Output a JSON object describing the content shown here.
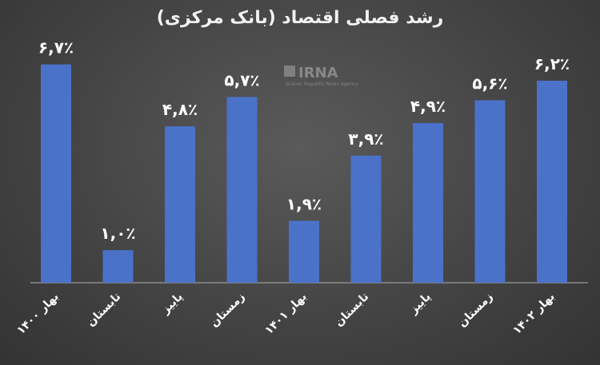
{
  "chart_data": {
    "type": "bar",
    "title": "رشد فصلی اقتصاد (بانک مرکزی)",
    "categories": [
      "بهار ۱۴۰۰",
      "تابستان",
      "پاییز",
      "زمستان",
      "بهار ۱۴۰۱",
      "تابستان",
      "پاییز",
      "زمستان",
      "بهار ۱۴۰۲"
    ],
    "values": [
      6.7,
      1.0,
      4.8,
      5.7,
      1.9,
      3.9,
      4.9,
      5.6,
      6.2
    ],
    "data_labels": [
      "۶,۷٪",
      "۱,۰٪",
      "۴,۸٪",
      "۵,۷٪",
      "۱,۹٪",
      "۳,۹٪",
      "۴,۹٪",
      "۵,۶٪",
      "۶,۲٪"
    ],
    "xlabel": "",
    "ylabel": "",
    "ylim": [
      0,
      7.5
    ],
    "grid": false,
    "bar_color": "#4a72c9"
  },
  "watermark": {
    "brand": "IRNA",
    "tagline": "Islamic Republic News Agency"
  }
}
